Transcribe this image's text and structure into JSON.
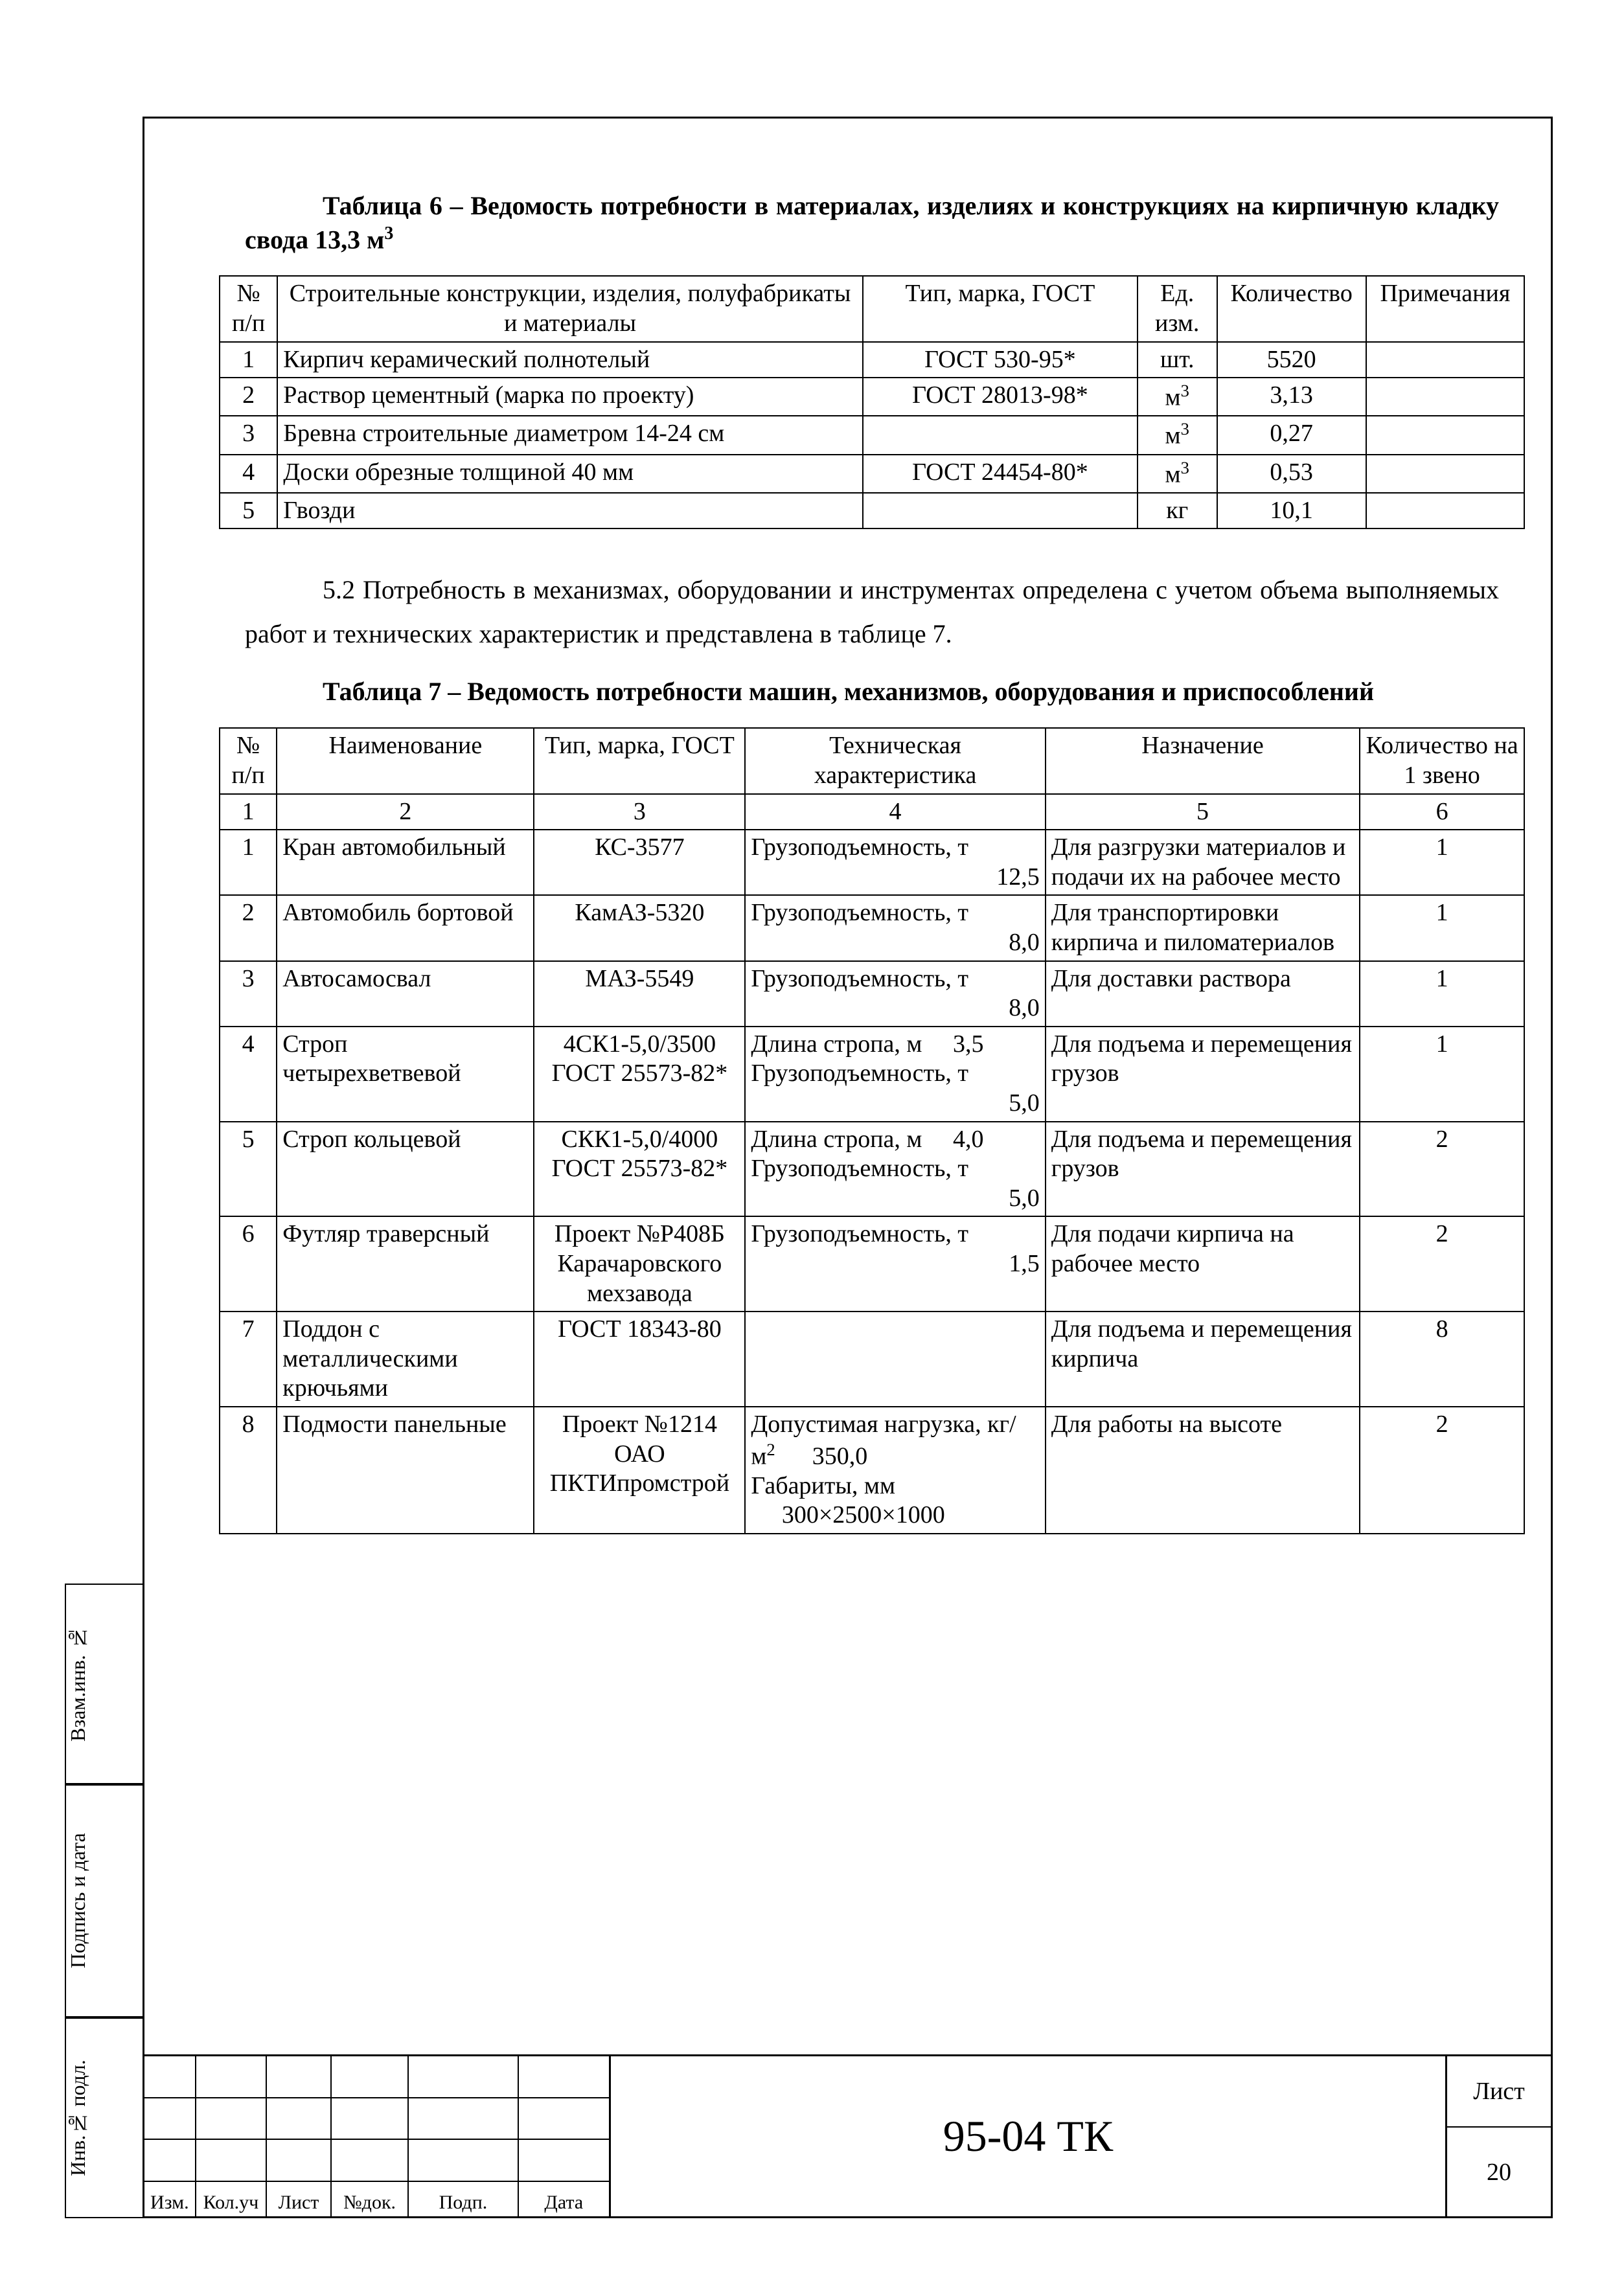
{
  "table6": {
    "title_html": "Таблица 6 – Ведомость потребности в материалах, изделиях и конструкциях на кирпичную кладку свода 13,3 м<sup>3</sup>",
    "headers": {
      "num": "№ п/п",
      "name": "Строительные конструкции, изделия, полуфабрикаты и материалы",
      "type": "Тип, марка, ГОСТ",
      "unit": "Ед. изм.",
      "qty": "Количество",
      "note": "Примечания"
    },
    "rows": [
      {
        "n": "1",
        "name": "Кирпич керамический полнотелый",
        "type": "ГОСТ 530-95*",
        "unit": "шт.",
        "qty": "5520",
        "note": ""
      },
      {
        "n": "2",
        "name": "Раствор цементный (марка по проекту)",
        "type": "ГОСТ 28013-98*",
        "unit_html": "м<sup>3</sup>",
        "qty": "3,13",
        "note": ""
      },
      {
        "n": "3",
        "name": "Бревна строительные диаметром 14-24 см",
        "type": "",
        "unit_html": "м<sup>3</sup>",
        "qty": "0,27",
        "note": ""
      },
      {
        "n": "4",
        "name": "Доски обрезные толщиной 40 мм",
        "type": "ГОСТ 24454-80*",
        "unit_html": "м<sup>3</sup>",
        "qty": "0,53",
        "note": ""
      },
      {
        "n": "5",
        "name": "Гвозди",
        "type": "",
        "unit": "кг",
        "qty": "10,1",
        "note": ""
      }
    ]
  },
  "paragraph_5_2": "5.2 Потребность в механизмах, оборудовании и инструментах определена с учетом объема выполняемых работ и технических характеристик и представлена в таблице 7.",
  "table7": {
    "title": "Таблица 7 – Ведомость потребности машин, механизмов, оборудования и приспособлений",
    "headers": {
      "num": "№ п/п",
      "name": "Наименование",
      "type": "Тип, марка, ГОСТ",
      "tech": "Техническая характеристика",
      "purpose": "Назначение",
      "qty": "Количество на 1 звено"
    },
    "col_nums": [
      "1",
      "2",
      "3",
      "4",
      "5",
      "6"
    ],
    "rows": [
      {
        "n": "1",
        "name": "Кран автомобильный",
        "type": "КС-3577",
        "tech_html": "Грузоподъемность, т<br><span style='float:right'>12,5</span>",
        "purpose": "Для разгрузки материалов и подачи их на рабочее место",
        "qty": "1"
      },
      {
        "n": "2",
        "name": "Автомобиль бортовой",
        "type": "КамАЗ-5320",
        "tech_html": "Грузоподъемность, т<br><span style='float:right'>8,0</span>",
        "purpose": "Для транспортировки кирпича и пиломатериалов",
        "qty": "1"
      },
      {
        "n": "3",
        "name": "Автосамосвал",
        "type": "МАЗ-5549",
        "tech_html": "Грузоподъемность, т<br><span style='float:right'>8,0</span>",
        "purpose": "Для доставки раствора",
        "qty": "1"
      },
      {
        "n": "4",
        "name": "Строп четырехветвевой",
        "type": "4СК1-5,0/3500 ГОСТ 25573-82*",
        "tech_html": "Длина стропа, м &nbsp;&nbsp;&nbsp; 3,5<br>Грузоподъемность, т<br><span style='float:right'>5,0</span>",
        "purpose": "Для подъема и перемещения грузов",
        "qty": "1"
      },
      {
        "n": "5",
        "name": "Строп кольцевой",
        "type": "СКК1-5,0/4000 ГОСТ 25573-82*",
        "tech_html": "Длина стропа, м &nbsp;&nbsp;&nbsp; 4,0<br>Грузоподъемность, т<br><span style='float:right'>5,0</span>",
        "purpose": "Для подъема и перемещения грузов",
        "qty": "2"
      },
      {
        "n": "6",
        "name": "Футляр траверсный",
        "type": "Проект №Р408Б Карачаровского мехзавода",
        "tech_html": "Грузоподъемность, т<br><span style='float:right'>1,5</span>",
        "purpose": "Для подачи кирпича на рабочее место",
        "qty": "2"
      },
      {
        "n": "7",
        "name": "Поддон с металлическими крючьями",
        "type": "ГОСТ 18343-80",
        "tech_html": "",
        "purpose": "Для подъема и перемещения кирпича",
        "qty": "8"
      },
      {
        "n": "8",
        "name": "Подмости панельные",
        "type": "Проект №1214 ОАО ПКТИпромстрой",
        "tech_html": "Допустимая нагрузка, кг/м<sup>2</sup> &nbsp;&nbsp;&nbsp;&nbsp; 350,0<br>Габариты, мм<br>&nbsp;&nbsp;&nbsp;&nbsp;&nbsp;300×2500×1000",
        "purpose": "Для работы на высоте",
        "qty": "2"
      }
    ]
  },
  "stamp": {
    "doc_number": "95-04 ТК",
    "sheet_label": "Лист",
    "sheet_number": "20",
    "bottom_cols": [
      "Изм.",
      "Кол.уч",
      "Лист",
      "№док.",
      "Подп.",
      "Дата"
    ]
  },
  "side_labels": {
    "vzam": "Взам.инв. №",
    "podpis": "Подпись и дата",
    "inv": "Инв.№ подл."
  }
}
